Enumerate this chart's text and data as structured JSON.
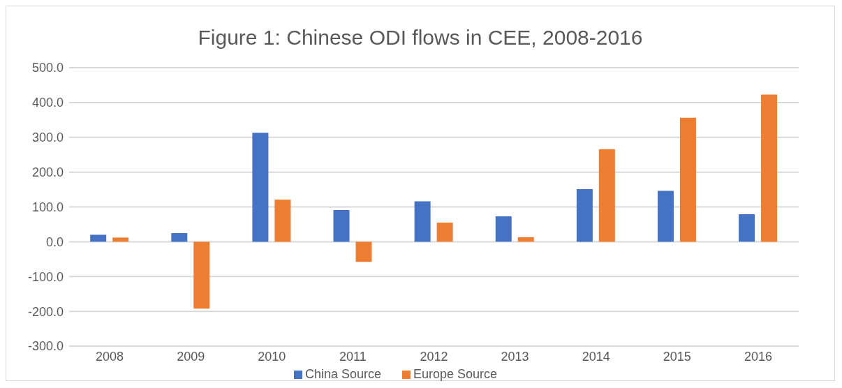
{
  "chart_data": {
    "type": "bar",
    "title": "Figure 1: Chinese ODI flows in CEE, 2008-2016",
    "categories": [
      "2008",
      "2009",
      "2010",
      "2011",
      "2012",
      "2013",
      "2014",
      "2015",
      "2016"
    ],
    "series": [
      {
        "name": "China Source",
        "color": "#4472c4",
        "values": [
          20,
          25,
          313,
          91,
          116,
          73,
          151,
          146,
          79
        ]
      },
      {
        "name": "Europe Source",
        "color": "#ed7d31",
        "values": [
          12,
          -192,
          121,
          -58,
          55,
          13,
          266,
          356,
          423
        ]
      }
    ],
    "ylim": [
      -300,
      500
    ],
    "yticks": [
      {
        "value": -300,
        "label": "-300.0"
      },
      {
        "value": -200,
        "label": "-200.0"
      },
      {
        "value": -100,
        "label": "-100.0"
      },
      {
        "value": 0,
        "label": "0.0"
      },
      {
        "value": 100,
        "label": "100.0"
      },
      {
        "value": 200,
        "label": "200.0"
      },
      {
        "value": 300,
        "label": "300.0"
      },
      {
        "value": 400,
        "label": "400.0"
      },
      {
        "value": 500,
        "label": "500.0"
      }
    ],
    "grid": "y",
    "legend": "bottom"
  }
}
